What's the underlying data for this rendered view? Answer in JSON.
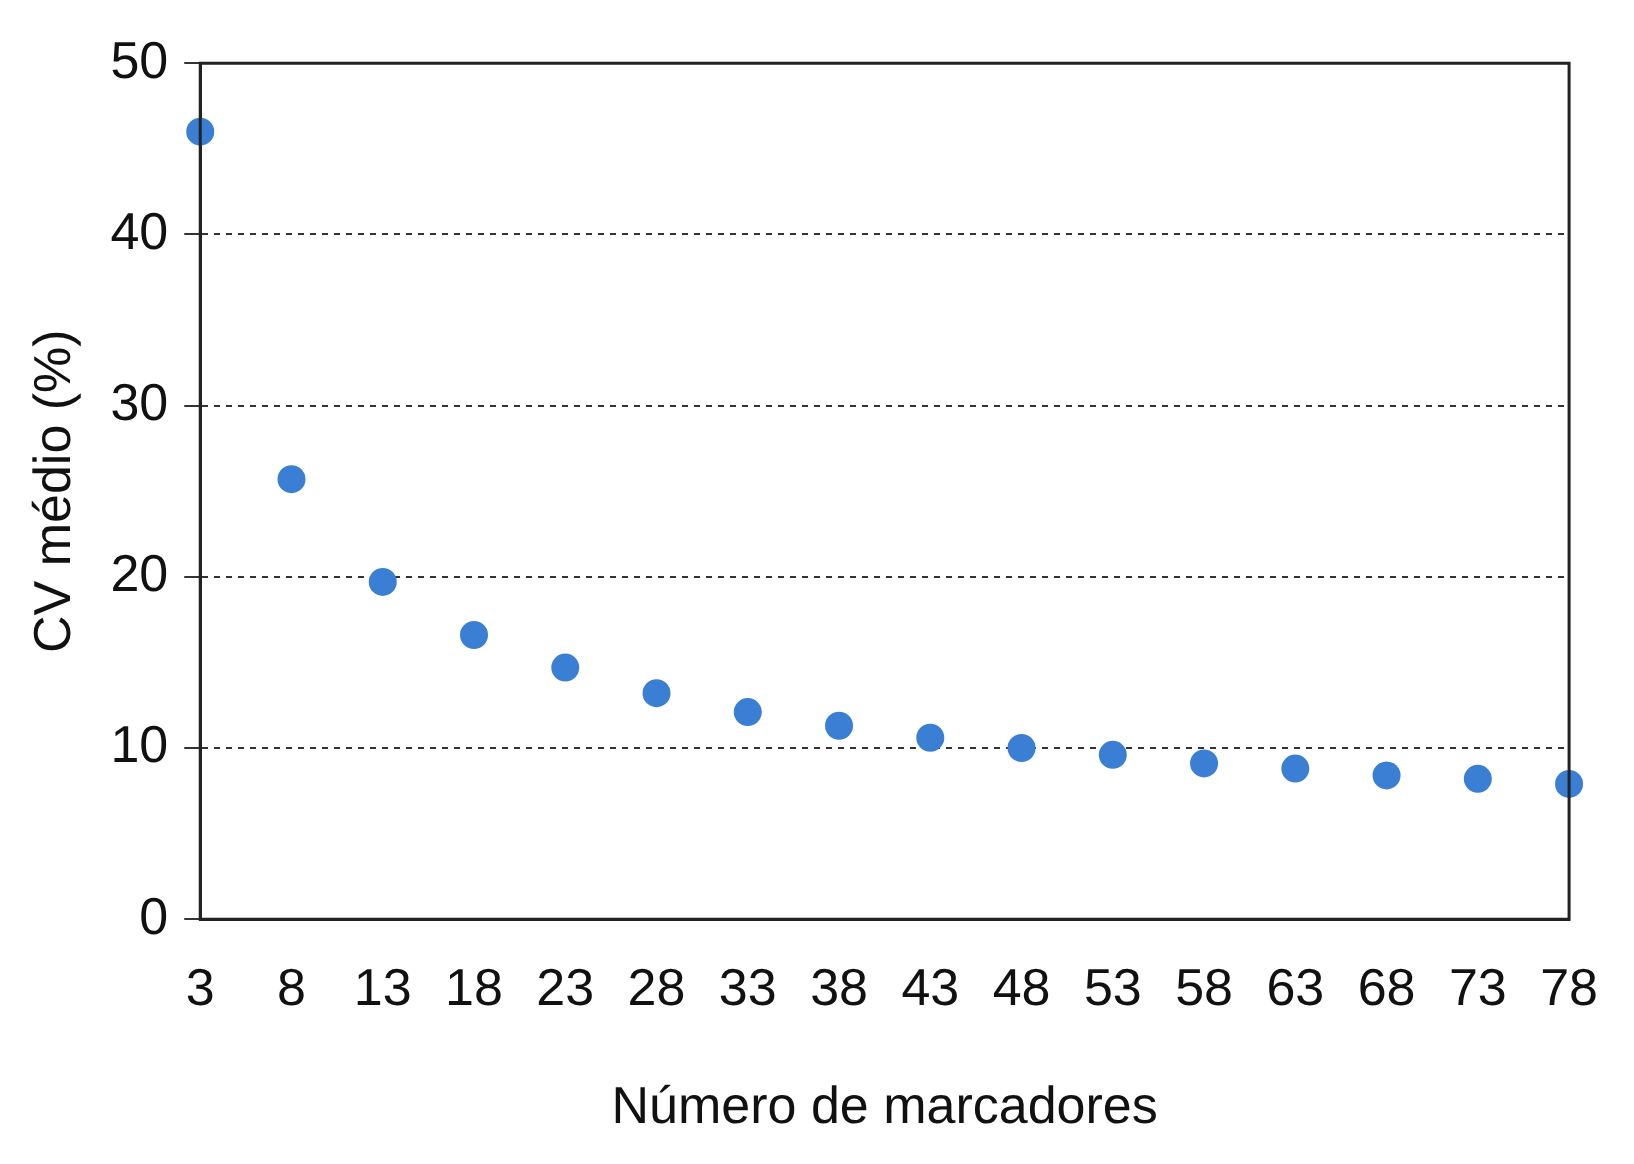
{
  "chart_data": {
    "type": "scatter",
    "xlabel": "Número de marcadores",
    "ylabel": "CV médio (%)",
    "x": [
      3,
      8,
      13,
      18,
      23,
      28,
      33,
      38,
      43,
      48,
      53,
      58,
      63,
      68,
      73,
      78
    ],
    "series": [
      {
        "color": "#3b7fd4",
        "values": [
          46.0,
          25.7,
          19.7,
          16.6,
          14.7,
          13.2,
          12.1,
          11.3,
          10.6,
          10.0,
          9.6,
          9.1,
          8.8,
          8.4,
          8.2,
          7.9
        ]
      }
    ],
    "xlim": [
      3,
      78
    ],
    "xticks": [
      3,
      8,
      13,
      18,
      23,
      28,
      33,
      38,
      43,
      48,
      53,
      58,
      63,
      68,
      73,
      78
    ],
    "ylim": [
      0,
      50
    ],
    "yticks": [
      0,
      10,
      20,
      30,
      40,
      50
    ],
    "grid": "y",
    "legend": false,
    "marker": "circle"
  }
}
